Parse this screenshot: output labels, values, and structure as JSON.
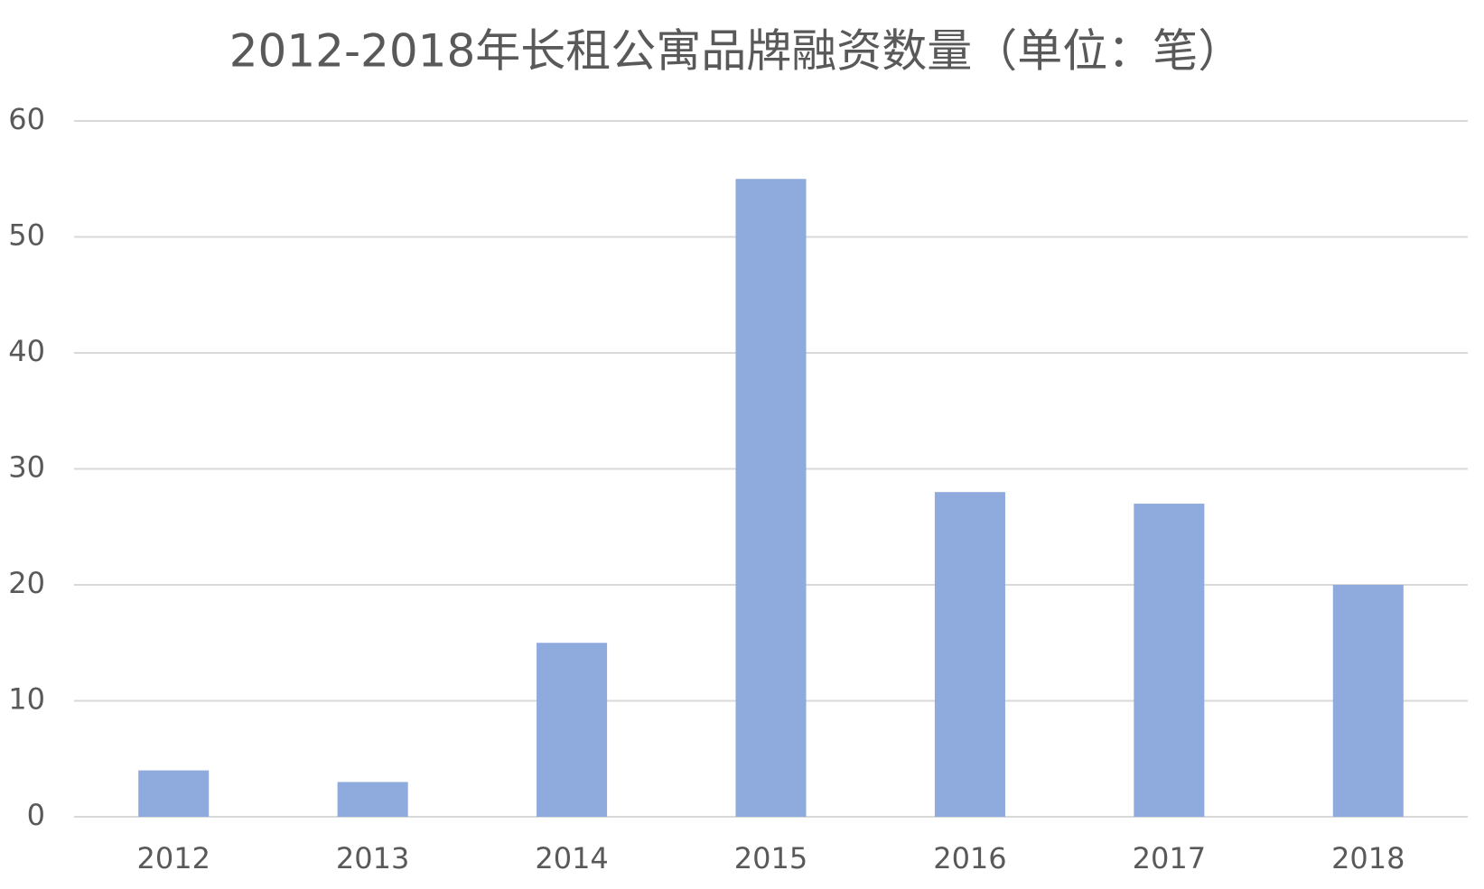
{
  "chart_data": {
    "type": "bar",
    "title": "2012-2018年长租公寓品牌融资数量（单位：笔）",
    "categories": [
      "2012",
      "2013",
      "2014",
      "2015",
      "2016",
      "2017",
      "2018"
    ],
    "values": [
      4,
      3,
      15,
      55,
      28,
      27,
      20
    ],
    "color": "#8faadc",
    "ylim": [
      0,
      60
    ],
    "yticks": [
      0,
      10,
      20,
      30,
      40,
      50,
      60
    ],
    "grid": true
  }
}
